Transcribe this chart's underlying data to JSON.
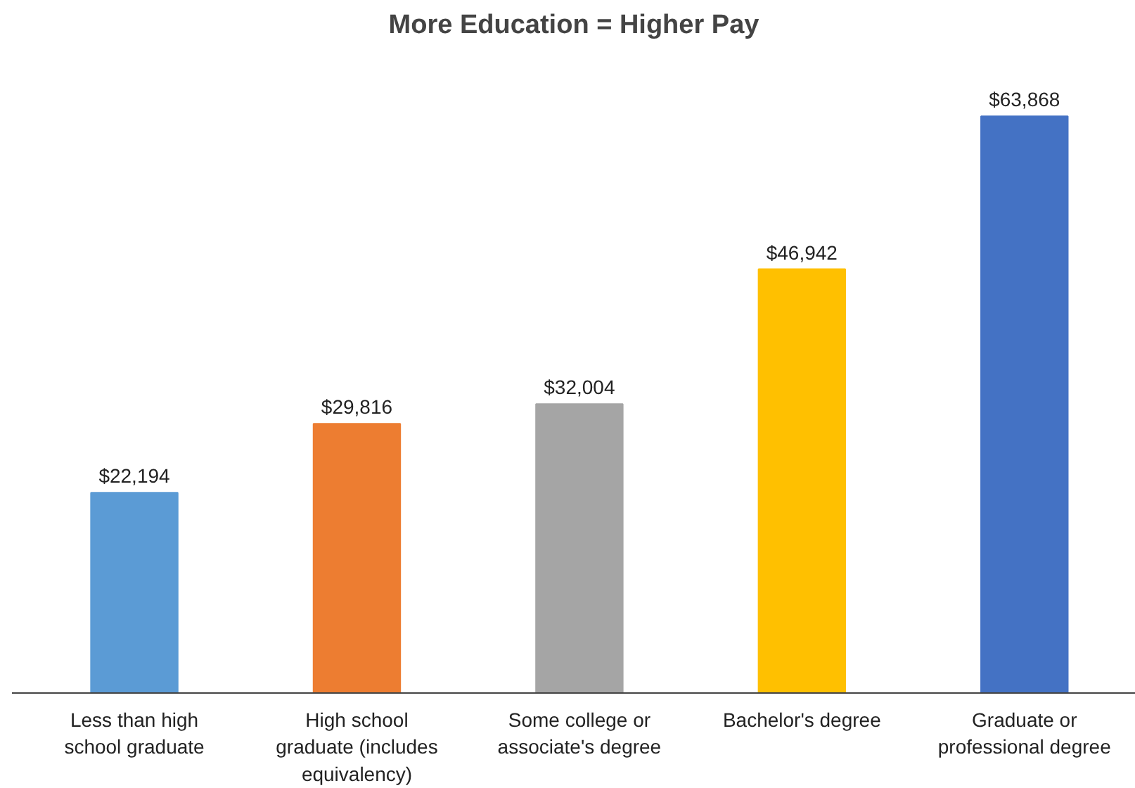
{
  "chart_data": {
    "type": "bar",
    "title": "More Education = Higher Pay",
    "categories": [
      "Less than high school graduate",
      "High school graduate (includes equivalency)",
      "Some college or associate's degree",
      "Bachelor's degree",
      "Graduate or professional degree"
    ],
    "values": [
      22194,
      29816,
      32004,
      46942,
      63868
    ],
    "value_labels": [
      "$22,194",
      "$29,816",
      "$32,004",
      "$46,942",
      "$63,868"
    ],
    "colors": [
      "#5b9bd5",
      "#ed7d31",
      "#a5a5a5",
      "#ffc000",
      "#4472c4"
    ],
    "grid": false
  }
}
